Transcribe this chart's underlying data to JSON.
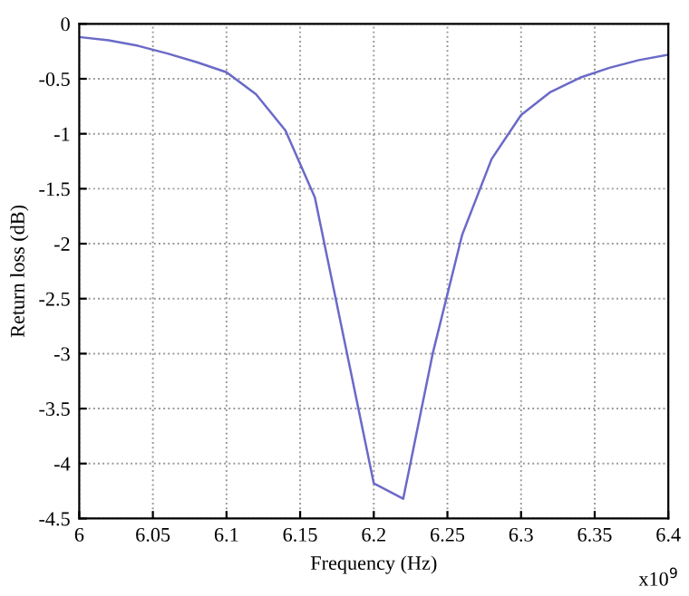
{
  "chart_data": {
    "type": "line",
    "xlabel": "Frequency (Hz)",
    "ylabel": "Return loss (dB)",
    "x": [
      6.0,
      6.02,
      6.04,
      6.06,
      6.08,
      6.1,
      6.12,
      6.14,
      6.16,
      6.18,
      6.2,
      6.22,
      6.24,
      6.26,
      6.28,
      6.3,
      6.32,
      6.34,
      6.36,
      6.38,
      6.4
    ],
    "series": [
      {
        "color": "#6a6ac8",
        "values": [
          -0.12,
          -0.15,
          -0.2,
          -0.27,
          -0.35,
          -0.44,
          -0.64,
          -0.97,
          -1.58,
          -2.88,
          -4.18,
          -4.32,
          -3.0,
          -1.92,
          -1.23,
          -0.83,
          -0.62,
          -0.49,
          -0.4,
          -0.33,
          -0.28
        ]
      }
    ],
    "xlim": [
      6.0,
      6.4
    ],
    "xticks": [
      6,
      6.05,
      6.1,
      6.15,
      6.2,
      6.25,
      6.3,
      6.35,
      6.4
    ],
    "ylim": [
      -4.5,
      0
    ],
    "yticks": [
      -4.5,
      -4,
      -3.5,
      -3,
      -2.5,
      -2,
      -1.5,
      -1,
      -0.5,
      0
    ],
    "grid": true,
    "annotations": [
      "x10$^{9}$"
    ]
  }
}
